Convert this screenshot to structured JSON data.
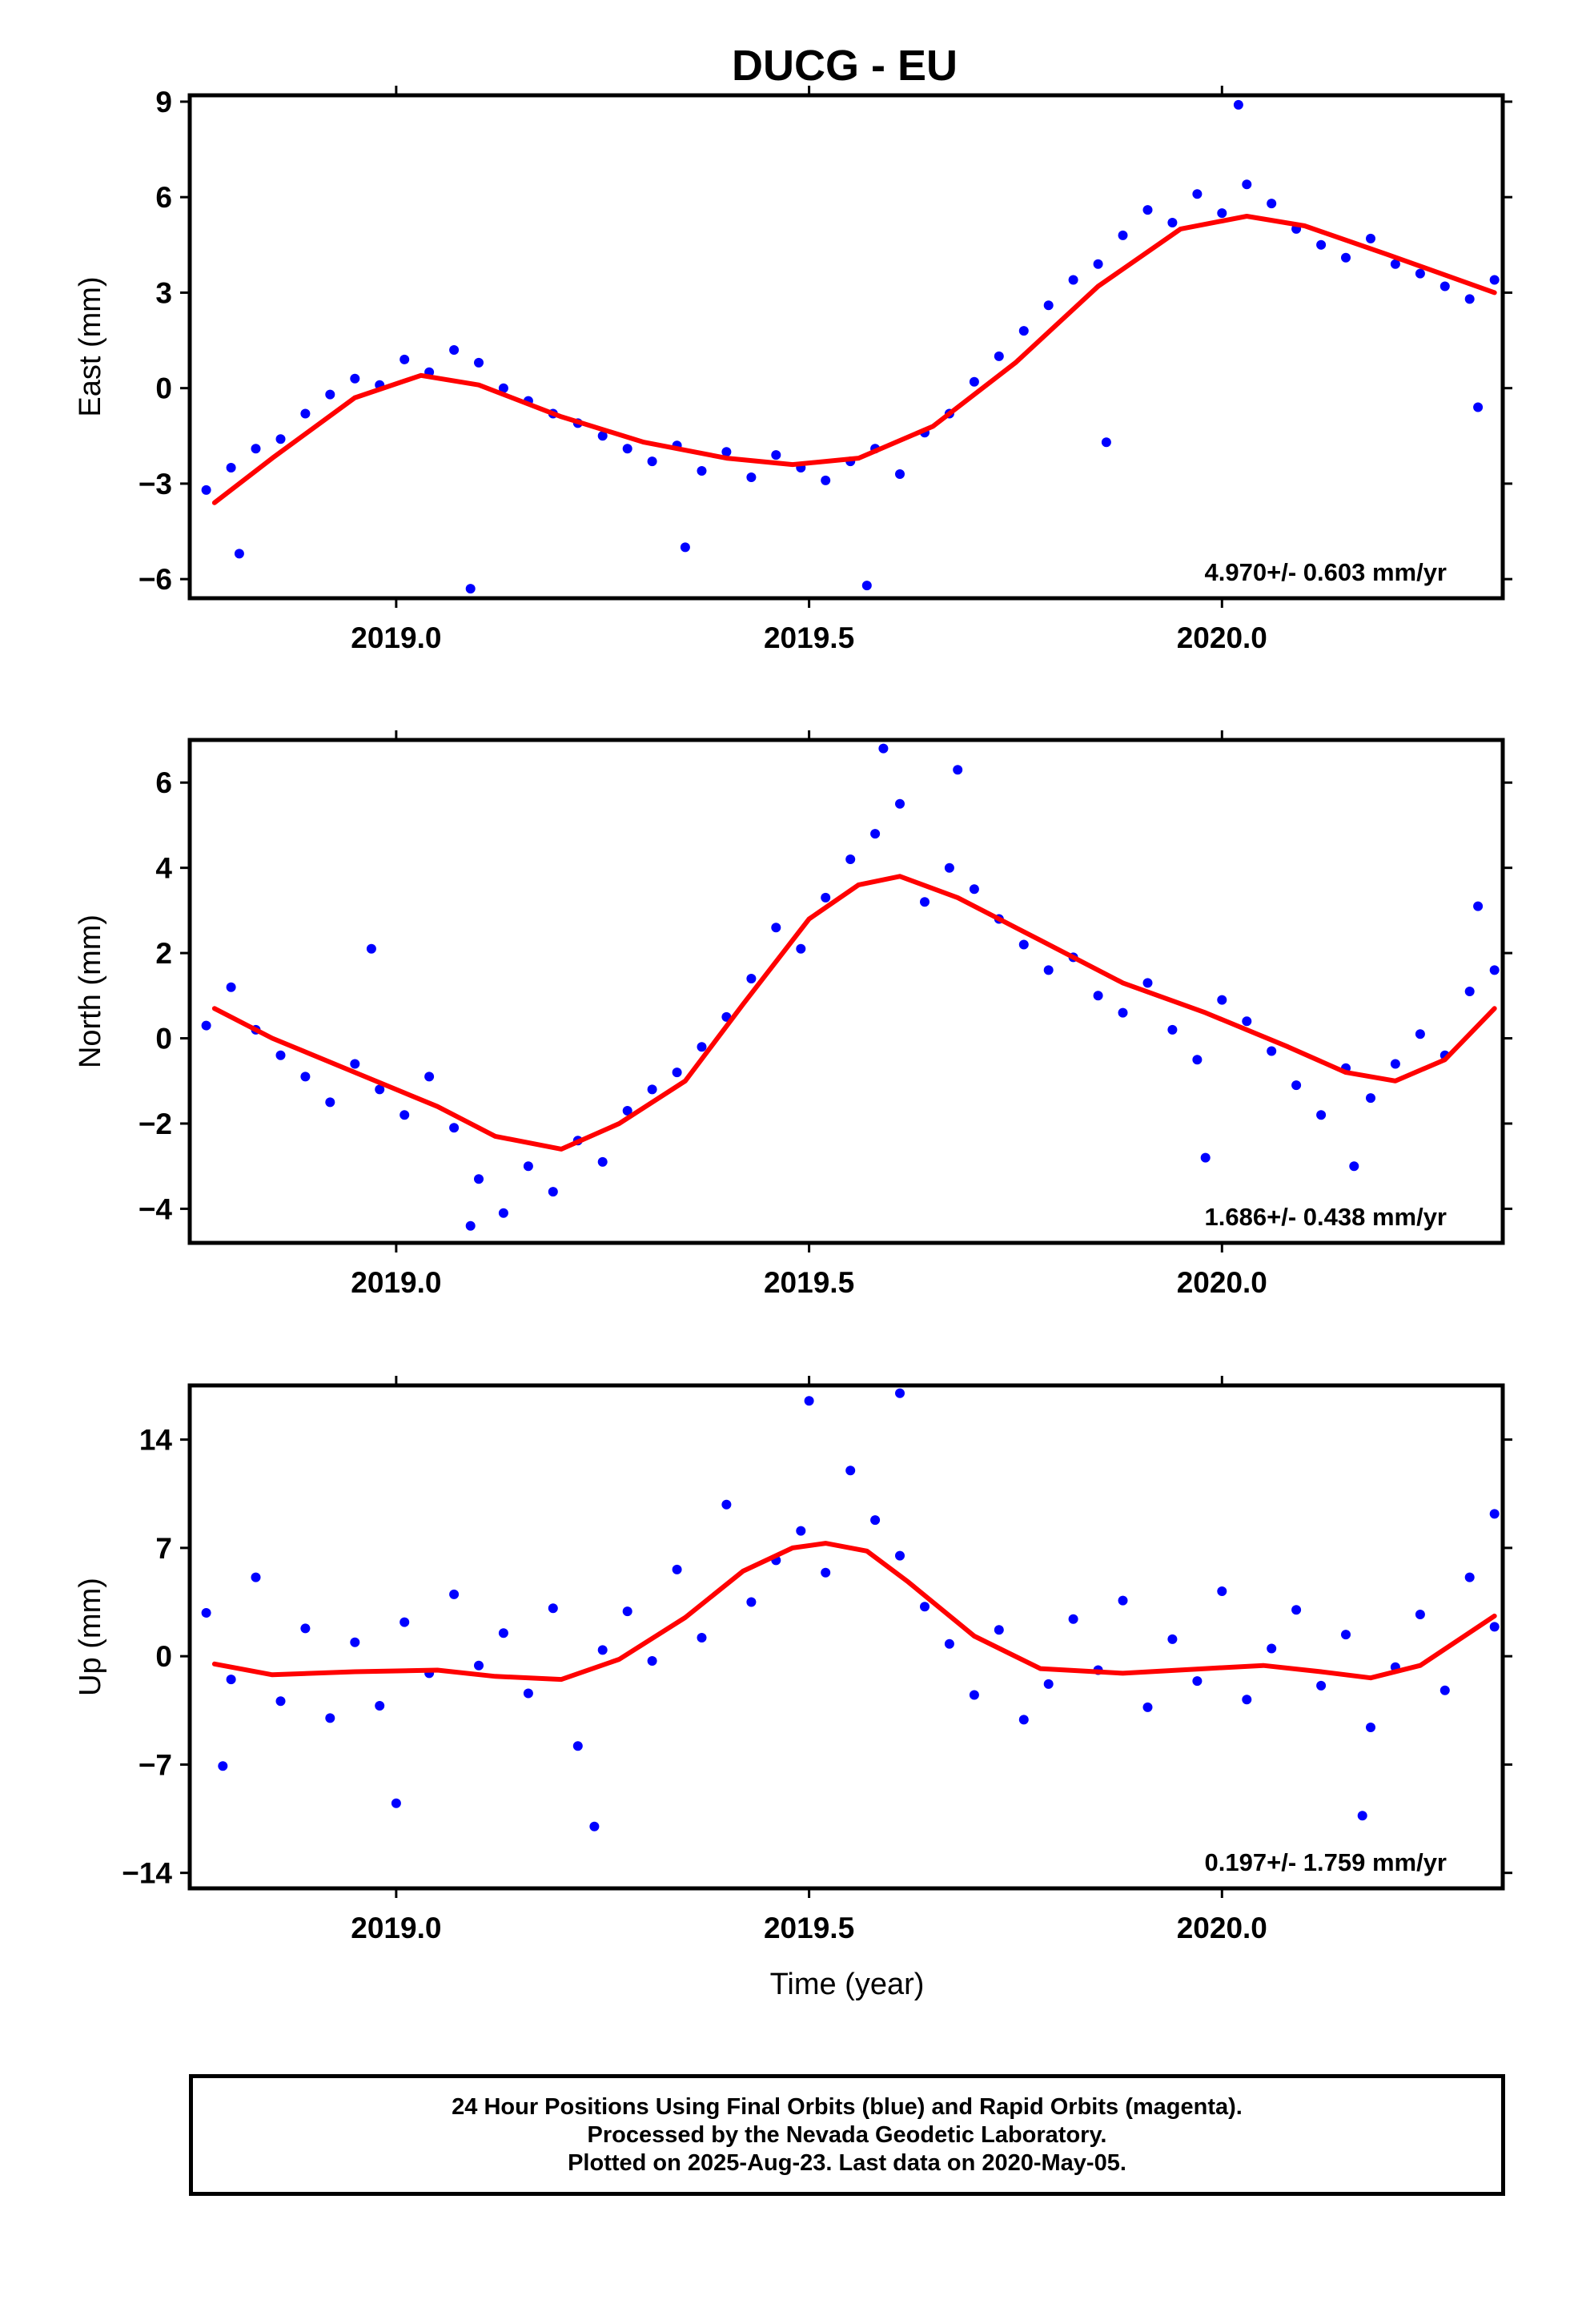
{
  "title": "DUCG - EU",
  "xlabel": "Time (year)",
  "caption": [
    "24 Hour Positions Using Final Orbits (blue) and Rapid Orbits (magenta).",
    "Processed by the Nevada Geodetic Laboratory.",
    "Plotted on 2025-Aug-23. Last data on 2020-May-05."
  ],
  "colors": {
    "final": "#0000ff",
    "rapid": "#ff00ff",
    "model": "#ff0000",
    "frame": "#000000"
  },
  "chart_data": [
    {
      "type": "scatter",
      "ylabel": "East (mm)",
      "rate": "4.970+/- 0.603 mm/yr",
      "xlim": [
        2018.75,
        2020.34
      ],
      "ylim": [
        -6.6,
        9.2
      ],
      "yticks": [
        -6,
        -3,
        0,
        3,
        6,
        9
      ],
      "ytick_labels": [
        "−6",
        "−3",
        "0",
        "3",
        "6",
        "9"
      ],
      "xticks": [
        2019.0,
        2019.5,
        2020.0
      ],
      "xtick_labels": [
        "2019.0",
        "2019.5",
        "2020.0"
      ],
      "model": {
        "x": [
          2018.78,
          2018.85,
          2018.95,
          2019.03,
          2019.1,
          2019.2,
          2019.3,
          2019.4,
          2019.48,
          2019.56,
          2019.65,
          2019.75,
          2019.85,
          2019.95,
          2020.03,
          2020.1,
          2020.2,
          2020.33
        ],
        "y": [
          -3.6,
          -2.2,
          -0.3,
          0.4,
          0.1,
          -0.9,
          -1.7,
          -2.2,
          -2.4,
          -2.2,
          -1.2,
          0.8,
          3.2,
          5.0,
          5.4,
          5.1,
          4.2,
          3.0
        ]
      },
      "series": [
        {
          "name": "Final Orbits",
          "x": [
            2018.77,
            2018.8,
            2018.83,
            2018.86,
            2018.89,
            2018.92,
            2018.95,
            2018.98,
            2019.01,
            2019.04,
            2019.07,
            2019.1,
            2019.13,
            2019.16,
            2019.19,
            2019.22,
            2019.25,
            2019.28,
            2019.31,
            2019.34,
            2019.37,
            2019.4,
            2019.43,
            2019.46,
            2019.49,
            2019.52,
            2019.55,
            2019.58,
            2019.61,
            2019.64,
            2019.67,
            2019.7,
            2019.73,
            2019.76,
            2019.79,
            2019.82,
            2019.85,
            2019.88,
            2019.91,
            2019.94,
            2019.97,
            2020.0,
            2020.03,
            2020.06,
            2020.09,
            2020.12,
            2020.15,
            2020.18,
            2020.21,
            2020.24,
            2020.27,
            2020.3,
            2020.33,
            2018.81,
            2019.09,
            2019.35,
            2019.57,
            2019.86,
            2020.02,
            2020.31
          ],
          "y": [
            -3.2,
            -2.5,
            -1.9,
            -1.6,
            -0.8,
            -0.2,
            0.3,
            0.1,
            0.9,
            0.5,
            1.2,
            0.8,
            0.0,
            -0.4,
            -0.8,
            -1.1,
            -1.5,
            -1.9,
            -2.3,
            -1.8,
            -2.6,
            -2.0,
            -2.8,
            -2.1,
            -2.5,
            -2.9,
            -2.3,
            -1.9,
            -2.7,
            -1.4,
            -0.8,
            0.2,
            1.0,
            1.8,
            2.6,
            3.4,
            3.9,
            4.8,
            5.6,
            5.2,
            6.1,
            5.5,
            6.4,
            5.8,
            5.0,
            4.5,
            4.1,
            4.7,
            3.9,
            3.6,
            3.2,
            2.8,
            3.4,
            -5.2,
            -6.3,
            -5.0,
            -6.2,
            -1.7,
            8.9,
            -0.6
          ]
        }
      ]
    },
    {
      "type": "scatter",
      "ylabel": "North (mm)",
      "rate": "1.686+/- 0.438 mm/yr",
      "xlim": [
        2018.75,
        2020.34
      ],
      "ylim": [
        -4.8,
        7.0
      ],
      "yticks": [
        -4,
        -2,
        0,
        2,
        4,
        6
      ],
      "ytick_labels": [
        "−4",
        "−2",
        "0",
        "2",
        "4",
        "6"
      ],
      "xticks": [
        2019.0,
        2019.5,
        2020.0
      ],
      "xtick_labels": [
        "2019.0",
        "2019.5",
        "2020.0"
      ],
      "model": {
        "x": [
          2018.78,
          2018.85,
          2018.95,
          2019.05,
          2019.12,
          2019.2,
          2019.27,
          2019.35,
          2019.42,
          2019.5,
          2019.56,
          2019.61,
          2019.68,
          2019.78,
          2019.88,
          2019.98,
          2020.08,
          2020.15,
          2020.21,
          2020.27,
          2020.33
        ],
        "y": [
          0.7,
          0.0,
          -0.8,
          -1.6,
          -2.3,
          -2.6,
          -2.0,
          -1.0,
          0.8,
          2.8,
          3.6,
          3.8,
          3.3,
          2.3,
          1.3,
          0.6,
          -0.2,
          -0.8,
          -1.0,
          -0.5,
          0.7
        ]
      },
      "series": [
        {
          "name": "Final Orbits",
          "x": [
            2018.77,
            2018.8,
            2018.83,
            2018.86,
            2018.89,
            2018.92,
            2018.95,
            2018.98,
            2019.01,
            2019.04,
            2019.07,
            2019.1,
            2019.13,
            2019.16,
            2019.19,
            2019.22,
            2019.25,
            2019.28,
            2019.31,
            2019.34,
            2019.37,
            2019.4,
            2019.43,
            2019.46,
            2019.49,
            2019.52,
            2019.55,
            2019.58,
            2019.61,
            2019.64,
            2019.67,
            2019.7,
            2019.73,
            2019.76,
            2019.79,
            2019.82,
            2019.85,
            2019.88,
            2019.91,
            2019.94,
            2019.97,
            2020.0,
            2020.03,
            2020.06,
            2020.09,
            2020.12,
            2020.15,
            2020.18,
            2020.21,
            2020.24,
            2020.27,
            2020.3,
            2020.33,
            2018.97,
            2019.09,
            2019.59,
            2019.68,
            2019.98,
            2020.16,
            2020.31
          ],
          "y": [
            0.3,
            1.2,
            0.2,
            -0.4,
            -0.9,
            -1.5,
            -0.6,
            -1.2,
            -1.8,
            -0.9,
            -2.1,
            -3.3,
            -4.1,
            -3.0,
            -3.6,
            -2.4,
            -2.9,
            -1.7,
            -1.2,
            -0.8,
            -0.2,
            0.5,
            1.4,
            2.6,
            2.1,
            3.3,
            4.2,
            4.8,
            5.5,
            3.2,
            4.0,
            3.5,
            2.8,
            2.2,
            1.6,
            1.9,
            1.0,
            0.6,
            1.3,
            0.2,
            -0.5,
            0.9,
            0.4,
            -0.3,
            -1.1,
            -1.8,
            -0.7,
            -1.4,
            -0.6,
            0.1,
            -0.4,
            1.1,
            1.6,
            2.1,
            -4.4,
            6.8,
            6.3,
            -2.8,
            -3.0,
            3.1
          ]
        }
      ]
    },
    {
      "type": "scatter",
      "ylabel": "Up (mm)",
      "rate": "0.197+/- 1.759 mm/yr",
      "xlim": [
        2018.75,
        2020.34
      ],
      "ylim": [
        -15,
        17.5
      ],
      "yticks": [
        -14,
        -7,
        0,
        7,
        14
      ],
      "ytick_labels": [
        "−14",
        "−7",
        "0",
        "7",
        "14"
      ],
      "xticks": [
        2019.0,
        2019.5,
        2020.0
      ],
      "xtick_labels": [
        "2019.0",
        "2019.5",
        "2020.0"
      ],
      "model": {
        "x": [
          2018.78,
          2018.85,
          2018.95,
          2019.05,
          2019.12,
          2019.2,
          2019.27,
          2019.35,
          2019.42,
          2019.48,
          2019.52,
          2019.57,
          2019.62,
          2019.7,
          2019.78,
          2019.88,
          2019.98,
          2020.05,
          2020.12,
          2020.18,
          2020.24,
          2020.33
        ],
        "y": [
          -0.5,
          -1.2,
          -1.0,
          -0.9,
          -1.3,
          -1.5,
          -0.2,
          2.5,
          5.5,
          7.0,
          7.3,
          6.8,
          4.8,
          1.3,
          -0.8,
          -1.1,
          -0.8,
          -0.6,
          -1.0,
          -1.4,
          -0.6,
          2.6
        ]
      },
      "series": [
        {
          "name": "Final Orbits",
          "x": [
            2018.77,
            2018.8,
            2018.83,
            2018.86,
            2018.89,
            2018.92,
            2018.95,
            2018.98,
            2019.01,
            2019.04,
            2019.07,
            2019.1,
            2019.13,
            2019.16,
            2019.19,
            2019.22,
            2019.25,
            2019.28,
            2019.31,
            2019.34,
            2019.37,
            2019.4,
            2019.43,
            2019.46,
            2019.49,
            2019.52,
            2019.55,
            2019.58,
            2019.61,
            2019.64,
            2019.67,
            2019.7,
            2019.73,
            2019.76,
            2019.79,
            2019.82,
            2019.85,
            2019.88,
            2019.91,
            2019.94,
            2019.97,
            2020.0,
            2020.03,
            2020.06,
            2020.09,
            2020.12,
            2020.15,
            2020.18,
            2020.21,
            2020.24,
            2020.27,
            2020.3,
            2020.33,
            2018.79,
            2019.0,
            2019.24,
            2019.5,
            2019.61,
            2020.17,
            2020.33
          ],
          "y": [
            2.8,
            -1.5,
            5.1,
            -2.9,
            1.8,
            -4.0,
            0.9,
            -3.2,
            2.2,
            -1.1,
            4.0,
            -0.6,
            1.5,
            -2.4,
            3.1,
            -5.8,
            0.4,
            2.9,
            -0.3,
            5.6,
            1.2,
            9.8,
            3.5,
            6.2,
            8.1,
            5.4,
            12.0,
            8.8,
            6.5,
            3.2,
            0.8,
            -2.5,
            1.7,
            -4.1,
            -1.8,
            2.4,
            -0.9,
            3.6,
            -3.3,
            1.1,
            -1.6,
            4.2,
            -2.8,
            0.5,
            3.0,
            -1.9,
            1.4,
            -4.6,
            -0.7,
            2.7,
            -2.2,
            5.1,
            1.9,
            -7.1,
            -9.5,
            -11.0,
            16.5,
            17.0,
            -10.3,
            9.2
          ]
        }
      ]
    }
  ]
}
